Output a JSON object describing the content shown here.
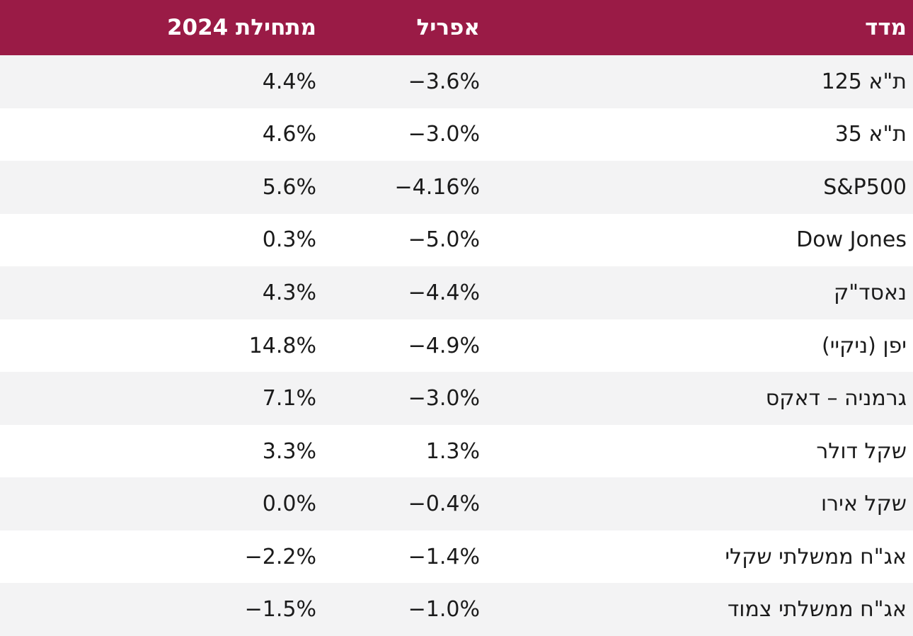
{
  "chart_data": {
    "type": "table",
    "columns": [
      "מדד",
      "אפריל",
      "מתחילת 2024"
    ],
    "rows": [
      {
        "name": "ת\"א 125",
        "april": "−3.6%",
        "ytd": "4.4%"
      },
      {
        "name": "ת\"א 35",
        "april": "−3.0%",
        "ytd": "4.6%"
      },
      {
        "name": "S&P500",
        "april": "−4.16%",
        "ytd": "5.6%"
      },
      {
        "name": "Dow Jones",
        "april": "−5.0%",
        "ytd": "0.3%"
      },
      {
        "name": "נאסד\"ק",
        "april": "−4.4%",
        "ytd": "4.3%"
      },
      {
        "name": "יפן (ניקיי)",
        "april": "−4.9%",
        "ytd": "14.8%"
      },
      {
        "name": "גרמניה – דאקס",
        "april": "−3.0%",
        "ytd": "7.1%"
      },
      {
        "name": "שקל דולר",
        "april": "1.3%",
        "ytd": "3.3%"
      },
      {
        "name": "שקל אירו",
        "april": "−0.4%",
        "ytd": "0.0%"
      },
      {
        "name": "אג\"ח ממשלתי שקלי",
        "april": "−1.4%",
        "ytd": "−2.2%"
      },
      {
        "name": "אג\"ח ממשלתי צמוד",
        "april": "−1.0%",
        "ytd": "−1.5%"
      }
    ]
  },
  "colors": {
    "header_bg": "#9a1b46",
    "header_text": "#ffffff",
    "row_alt_bg": "#f3f3f4",
    "row_bg": "#ffffff",
    "body_text": "#1b1b1b"
  }
}
